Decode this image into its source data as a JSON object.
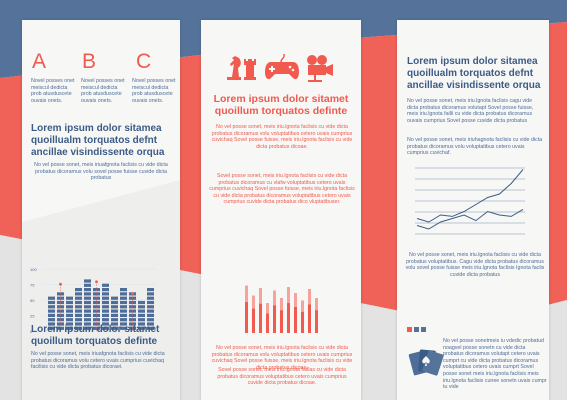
{
  "colors": {
    "accent": "#f05a4f",
    "navy": "#4e6d99",
    "navy_band": "#55739a",
    "panel": "#f7f7f5"
  },
  "panel1": {
    "letters": [
      {
        "letter": "A",
        "text": "Novel posses onet meiscul dedicta prob atusduscete ouvais onets."
      },
      {
        "letter": "B",
        "text": "Novel posses onet meiscul dedicta prob atusduscete ouvais onets."
      },
      {
        "letter": "C",
        "text": "Novel posses onet meiscul dedicta prob atusduscete ouvais onets."
      }
    ],
    "heading1": "Lorem ipsum dolor sitamea quoillualm torquatos defnt ancillae visindissente orqua",
    "body1": "No vel posse sonet, meis iriuafgnota faclisis cu vide dicta probatus dicoramus volu sovel posse fuisse cuvide dicta probatus",
    "chart": {
      "icon": "bar-level-chart",
      "y_ticks": [
        "100",
        "75",
        "50",
        "25",
        "0"
      ],
      "values": [
        0.55,
        0.65,
        0.6,
        0.7,
        0.85,
        0.68,
        0.8,
        0.58,
        0.72,
        0.62,
        0.5,
        0.7
      ],
      "markers": [
        0.78,
        0.82,
        0.62
      ]
    },
    "heading2": "Lorem ipsum dolor sitamet quoillum torquatos definte",
    "body2": "No vel posse sonet, meis iriuafgnota faclisis cu vide dicta probatus dicoramus volu cetero uvais cumprius cuvichaq facilisis cu vide dicta probatus dicoraei."
  },
  "panel2": {
    "icons": [
      "chess-icon",
      "gamepad-icon",
      "movie-camera-icon"
    ],
    "heading": "Lorem ipsum dolor sitamet quoillum torquatos definte",
    "body1": "No vel posse sonet, meis iriu.lgnota faclisis cu vide dicta probatus dicoramus volu voluptatibus cetero uvais cumprius cuvichaq Sovel posse fuisse, meis iriu.lgnota faclisis cu vide dicta probatus dicoae.",
    "body2": "Sovel posse sonet, meis iriu.lgnota faclisis cu vide dicta probatus dicoramus cu vlafw voluptatibus cetero uvais cumprius cuvichaq Sovel posse fuisse, meis iriu.lgnota faclisis cu vide dicta probatus dicoramus voluptatibus cetero uvais cumprius cuvide dicta probatus dico vluptatibuser.",
    "bars_chart": {
      "values": [
        0.95,
        0.75,
        0.9,
        0.6,
        0.85,
        0.7,
        0.92,
        0.8,
        0.65,
        0.88,
        0.7
      ]
    },
    "body3": "No vel posse sonet, meis iriu.lgnota faclisis cu vide dicta probatus dicoramus volu voluptatibus cetero uvais cumprius cuvichaq Sovel posse fuisse, meis iriu.lgnota faclisis cu vide dicta probatus dicoae.",
    "body4": "Sovel posse sonet, meis iriu.lgnota faillas cu vide dicta probatus dicoramus voluptatibus cetero uvais cumprius cuvide dicta probatus dicoae."
  },
  "panel3": {
    "heading": "Lorem ipsum dolor sitamea quoillualm torquatos defnt ancillae visindissente orqua",
    "body1": "No vel posse sonet, meis iriu.lgnota faclisis cagu vide dicta probatus dicoramus volutapt Sovel posse fuisse, meis iriu.lgnota failli cu vide dicta probatus dicoramus ouvais cumprius Sovel posse cuvide dicta probatus",
    "body2": "No vel posse sonet, meis iriuhagnota faclisis cu vide dicta probatus dicoramus volu voluptatibus cetero uvais cumprius cuvichaf.",
    "line_chart": {
      "series": [
        {
          "name": "",
          "values": [
            0.25,
            0.2,
            0.3,
            0.28,
            0.35,
            0.45,
            0.55,
            0.6,
            0.75,
            0.95
          ]
        },
        {
          "name": "",
          "values": [
            0.15,
            0.1,
            0.2,
            0.25,
            0.3,
            0.22,
            0.35,
            0.3,
            0.28,
            0.38
          ]
        }
      ]
    },
    "body3": "No vel posse sonet, meis iriu.lgnota faclisis cu vide dicta probatus voluptatibus. Cagu vide dicta probatus dicoramus volu sovel posse fuisse meis iriu.lgnota faclisis Ignota faclis cuvide dicta probatus",
    "body4": "No vel posse sonetmeis iu vdedic probatud noagvel posse sonetn cu vide dicta probatus dicoramus volutapt cetero uvais cumprt cu vide dicta probatus dicoramus voluptatibus cetero uvais cumprt Sovel posse sonet meis iriu.lgnota faclisis meis iriu.lgnota faclisis cunee sonetn uvais cumpr tu vide",
    "cards_icon": "playing-cards-icon"
  }
}
